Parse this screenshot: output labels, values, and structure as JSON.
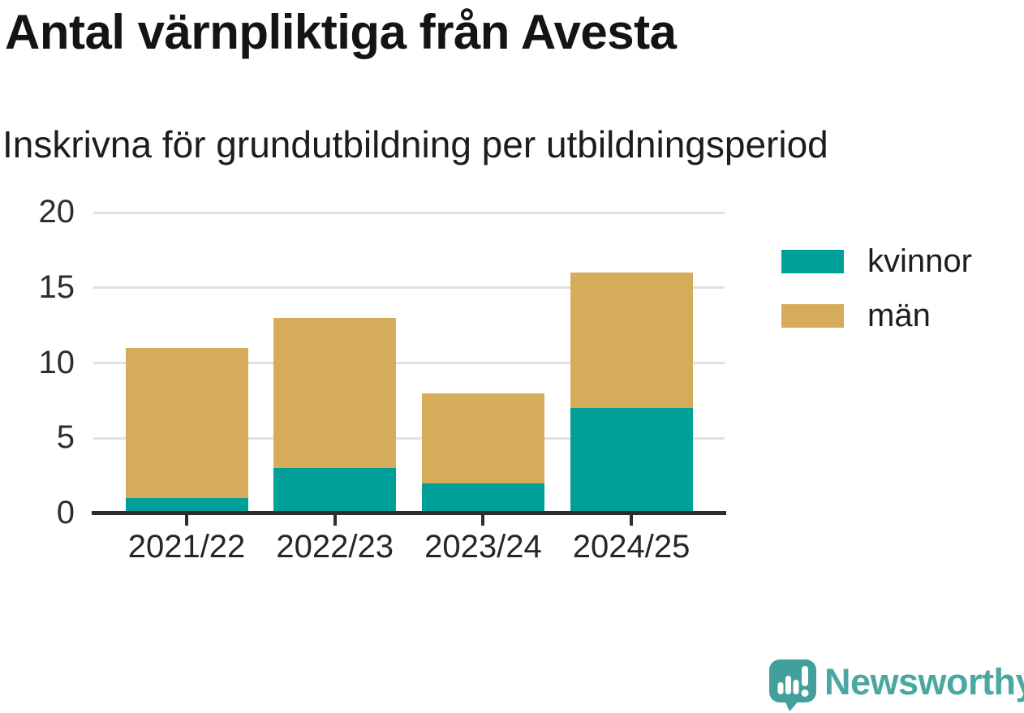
{
  "header": {
    "title": "Antal värnpliktiga från Avesta",
    "subtitle": "Inskrivna för grundutbildning per utbildningsperiod"
  },
  "chart_data": {
    "type": "bar",
    "stacked": true,
    "title": "Antal värnpliktiga från Avesta",
    "subtitle": "Inskrivna för grundutbildning per utbildningsperiod",
    "categories": [
      "2021/22",
      "2022/23",
      "2023/24",
      "2024/25"
    ],
    "series": [
      {
        "name": "kvinnor",
        "color": "#00A099",
        "values": [
          1,
          3,
          2,
          7
        ]
      },
      {
        "name": "män",
        "color": "#D6AB5A",
        "values": [
          10,
          10,
          6,
          9
        ]
      }
    ],
    "totals": [
      11,
      13,
      8,
      16
    ],
    "xlabel": "",
    "ylabel": "",
    "ylim": [
      0,
      20
    ],
    "yticks": [
      0,
      5,
      10,
      15,
      20
    ],
    "grid": true,
    "legend_position": "right",
    "axis_color": "#2d2d2d",
    "gridline_color": "#e1e1e1"
  },
  "branding": {
    "logo_text": "Newsworthy",
    "logo_badge_color": "#41A09B",
    "logo_text_color": "#4BA7A2"
  }
}
